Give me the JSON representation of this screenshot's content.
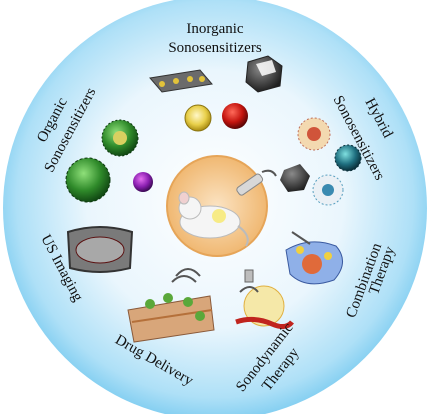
{
  "labels": {
    "inorganic_line1": "Inorganic",
    "inorganic_line2": "Sonosensitizers",
    "organic_line1": "Organic",
    "organic_line2": "Sonosensitizers",
    "hybrid_line1": "Hybrid",
    "hybrid_line2": "Sonosensitizers",
    "combination_line1": "Combination",
    "combination_line2": "Therapy",
    "sonodynamic_line1": "Sonodynamic",
    "sonodynamic_line2": "Therapy",
    "drug_delivery": "Drug Delivery",
    "us_imaging": "US Imaging"
  },
  "colors": {
    "disc_center": "#ffffff",
    "disc_edge": "#6ec6ee",
    "center_glow": "#f3c488"
  }
}
